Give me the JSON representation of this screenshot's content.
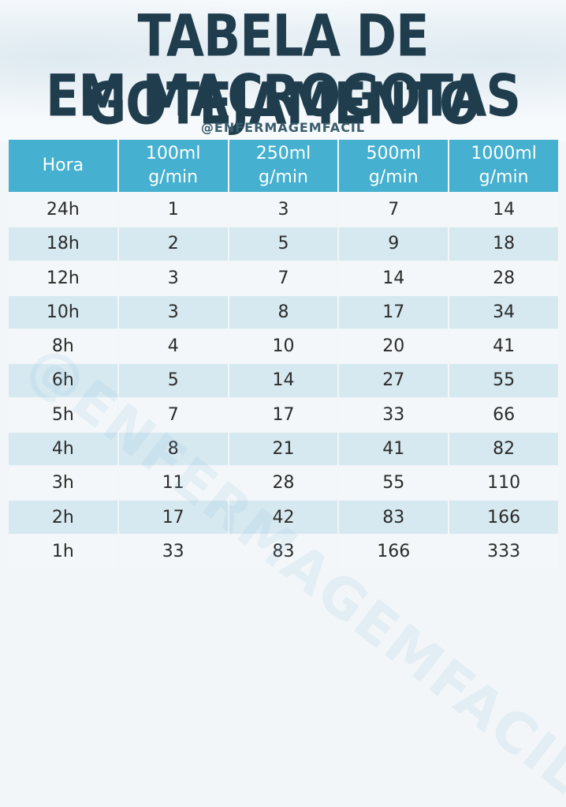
{
  "title": {
    "line1": "TABELA DE GOTEJAMENTO",
    "line2": "EM MACROGOTAS"
  },
  "handle": "@ENFERMAGEMFACIL",
  "watermark": "@ENFERMAGEMFACIL",
  "colors": {
    "header_bg": "#45b0cf",
    "title": "#1f3d4d",
    "row_light": "#f3f7f9",
    "row_dark": "#d6e8f0"
  },
  "table": {
    "headers": [
      {
        "line1": "Hora",
        "line2": ""
      },
      {
        "line1": "100ml",
        "line2": "g/min"
      },
      {
        "line1": "250ml",
        "line2": "g/min"
      },
      {
        "line1": "500ml",
        "line2": "g/min"
      },
      {
        "line1": "1000ml",
        "line2": "g/min"
      }
    ],
    "rows": [
      [
        "24h",
        "1",
        "3",
        "7",
        "14"
      ],
      [
        "18h",
        "2",
        "5",
        "9",
        "18"
      ],
      [
        "12h",
        "3",
        "7",
        "14",
        "28"
      ],
      [
        "10h",
        "3",
        "8",
        "17",
        "34"
      ],
      [
        "8h",
        "4",
        "10",
        "20",
        "41"
      ],
      [
        "6h",
        "5",
        "14",
        "27",
        "55"
      ],
      [
        "5h",
        "7",
        "17",
        "33",
        "66"
      ],
      [
        "4h",
        "8",
        "21",
        "41",
        "82"
      ],
      [
        "3h",
        "11",
        "28",
        "55",
        "110"
      ],
      [
        "2h",
        "17",
        "42",
        "83",
        "166"
      ],
      [
        "1h",
        "33",
        "83",
        "166",
        "333"
      ]
    ]
  }
}
